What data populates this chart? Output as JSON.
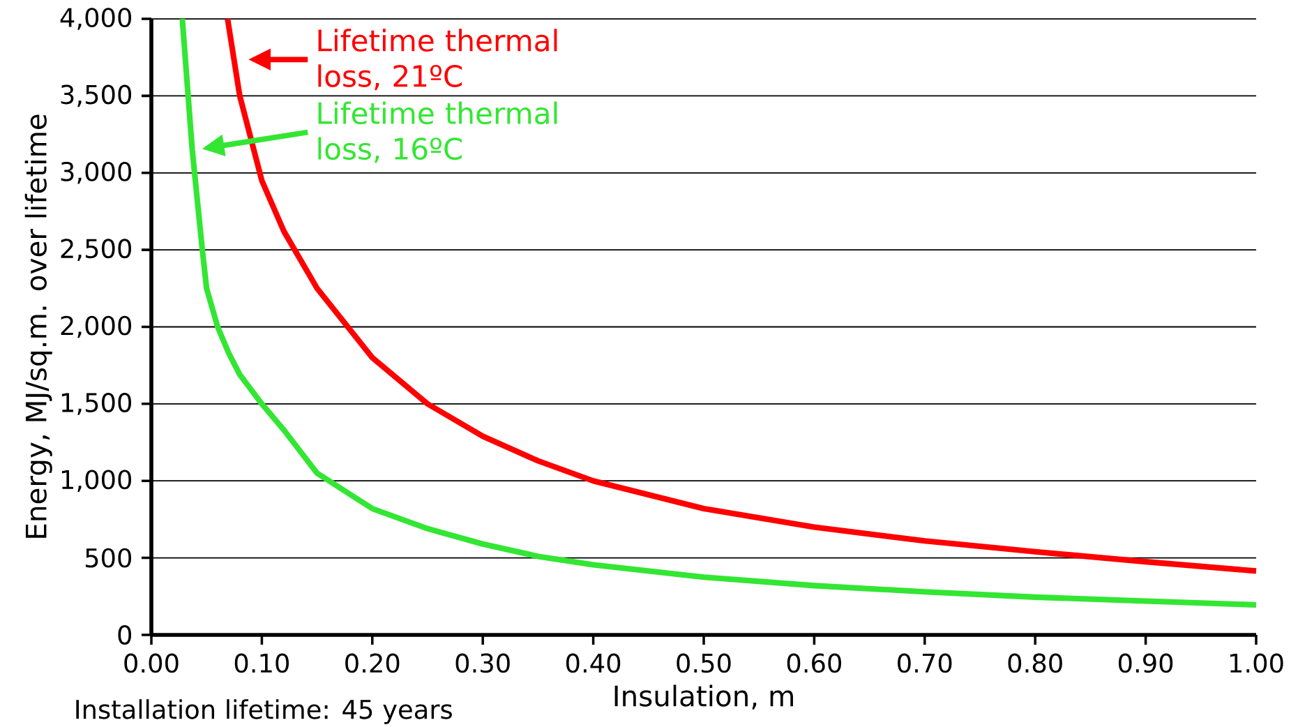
{
  "chart_data": {
    "type": "line",
    "xlabel": "Insulation, m",
    "ylabel": "Energy, MJ/sq.m. over lifetime",
    "xlim": [
      0,
      1
    ],
    "ylim": [
      0,
      4000
    ],
    "xticks": [
      {
        "value": 0,
        "label": "0.00"
      },
      {
        "value": 0.1,
        "label": "0.10"
      },
      {
        "value": 0.2,
        "label": "0.20"
      },
      {
        "value": 0.3,
        "label": "0.30"
      },
      {
        "value": 0.4,
        "label": "0.40"
      },
      {
        "value": 0.5,
        "label": "0.50"
      },
      {
        "value": 0.6,
        "label": "0.60"
      },
      {
        "value": 0.7,
        "label": "0.70"
      },
      {
        "value": 0.8,
        "label": "0.80"
      },
      {
        "value": 0.9,
        "label": "0.90"
      },
      {
        "value": 1,
        "label": "1.00"
      }
    ],
    "yticks": [
      0,
      500,
      {
        "value": 1000,
        "label": "1,000"
      },
      {
        "value": 1500,
        "label": "1,500"
      },
      {
        "value": 2000,
        "label": "2,000"
      },
      {
        "value": 2500,
        "label": "2,500"
      },
      {
        "value": 3000,
        "label": "3,000"
      },
      {
        "value": 3500,
        "label": "3,500"
      },
      {
        "value": 4000,
        "label": "4,000"
      }
    ],
    "grid": "y",
    "marker": "none",
    "line_style": "solid",
    "series": [
      {
        "color": "#ff0000",
        "x": [
          0.069,
          0.08,
          0.1,
          0.12,
          0.15,
          0.2,
          0.25,
          0.3,
          0.35,
          0.4,
          0.5,
          0.6,
          0.7,
          0.8,
          0.9,
          1.0
        ],
        "values": [
          4000,
          3500,
          2950,
          2620,
          2250,
          1800,
          1500,
          1290,
          1130,
          1000,
          820,
          700,
          610,
          540,
          475,
          415
        ]
      },
      {
        "color": "#33e633",
        "x": [
          0.028,
          0.037,
          0.046,
          0.05,
          0.06,
          0.07,
          0.08,
          0.1,
          0.12,
          0.15,
          0.2,
          0.25,
          0.3,
          0.35,
          0.4,
          0.5,
          0.6,
          0.7,
          0.8,
          0.9,
          1.0
        ],
        "values": [
          4000,
          3150,
          2510,
          2250,
          2000,
          1830,
          1690,
          1500,
          1330,
          1050,
          820,
          690,
          590,
          510,
          455,
          375,
          320,
          280,
          245,
          220,
          195
        ]
      }
    ],
    "annotations": [
      "Lifetime thermal loss, 21ºC",
      "Lifetime thermal loss, 16ºC",
      "Installation lifetime: 45 years"
    ]
  }
}
